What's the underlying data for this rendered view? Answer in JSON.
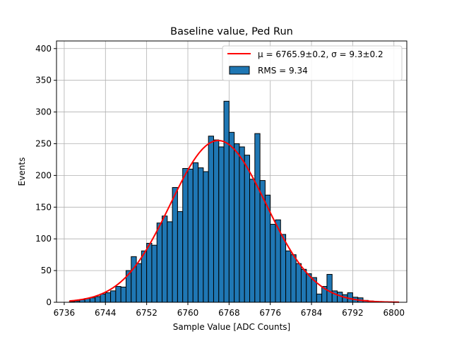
{
  "chart_data": {
    "type": "bar",
    "title": "Baseline value, Ped Run",
    "xlabel": "Sample Value [ADC Counts]",
    "ylabel": "Events",
    "xlim": [
      6734.5,
      6802.5
    ],
    "ylim": [
      0,
      412
    ],
    "xticks": [
      6736,
      6744,
      6752,
      6760,
      6768,
      6776,
      6784,
      6792,
      6800
    ],
    "yticks": [
      0,
      50,
      100,
      150,
      200,
      250,
      300,
      350,
      400
    ],
    "grid": true,
    "legend_position": "top-right",
    "bin_edges_start": 6737,
    "bin_width": 1,
    "counts": [
      1,
      2,
      4,
      6,
      7,
      9,
      13,
      15,
      18,
      25,
      24,
      50,
      72,
      61,
      81,
      93,
      90,
      125,
      136,
      127,
      181,
      143,
      211,
      210,
      220,
      212,
      206,
      262,
      256,
      245,
      317,
      268,
      250,
      245,
      232,
      194,
      266,
      192,
      169,
      123,
      130,
      107,
      81,
      75,
      61,
      52,
      45,
      39,
      13,
      25,
      44,
      18,
      16,
      12,
      15,
      8,
      7,
      3,
      2,
      1,
      1
    ],
    "series": [
      {
        "name": "RMS = 9.34",
        "kind": "histogram",
        "color": "#1f77b4"
      },
      {
        "name": "μ = 6765.9±0.2, σ = 9.3±0.2",
        "kind": "gaussian_fit",
        "color": "#ff0000",
        "mu": 6765.9,
        "sigma": 9.3,
        "amplitude": 255,
        "x_range": [
          6737,
          6801
        ]
      }
    ]
  }
}
